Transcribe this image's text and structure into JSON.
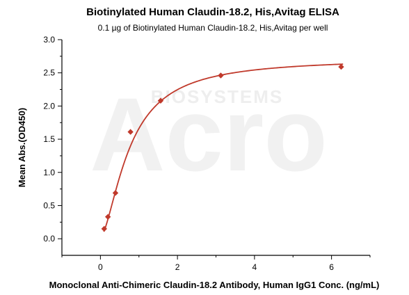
{
  "watermark": {
    "big_text": "Acro",
    "small_text": "BIOSYSTEMS"
  },
  "chart_data": {
    "type": "scatter",
    "title": "Biotinylated Human Claudin-18.2, His,Avitag ELISA",
    "subtitle": "0.1 µg of Biotinylated Human Claudin-18.2, His,Avitag per well",
    "xlabel": "Monoclonal Anti-Chimeric Claudin-18.2 Antibody, Human IgG1 Conc. (ng/mL)",
    "ylabel": "Mean Abs.(OD450)",
    "xlim": [
      -1,
      7
    ],
    "ylim": [
      -0.25,
      3.0
    ],
    "x_ticks": [
      0,
      2,
      4,
      6
    ],
    "x_tick_labels": [
      "0",
      "2",
      "4",
      "6"
    ],
    "y_ticks": [
      0.0,
      0.5,
      1.0,
      1.5,
      2.0,
      2.5,
      3.0
    ],
    "y_tick_labels": [
      "0.0",
      "0.5",
      "1.0",
      "1.5",
      "2.0",
      "2.5",
      "3.0"
    ],
    "grid": false,
    "legend": "none",
    "series": [
      {
        "marker": "diamond",
        "color": "#c0392b",
        "fit": "four-parameter logistic curve",
        "x": [
          0.098,
          0.195,
          0.39,
          0.781,
          1.563,
          3.125,
          6.25
        ],
        "y": [
          0.15,
          0.33,
          0.69,
          1.61,
          2.08,
          2.46,
          2.59
        ]
      }
    ]
  }
}
